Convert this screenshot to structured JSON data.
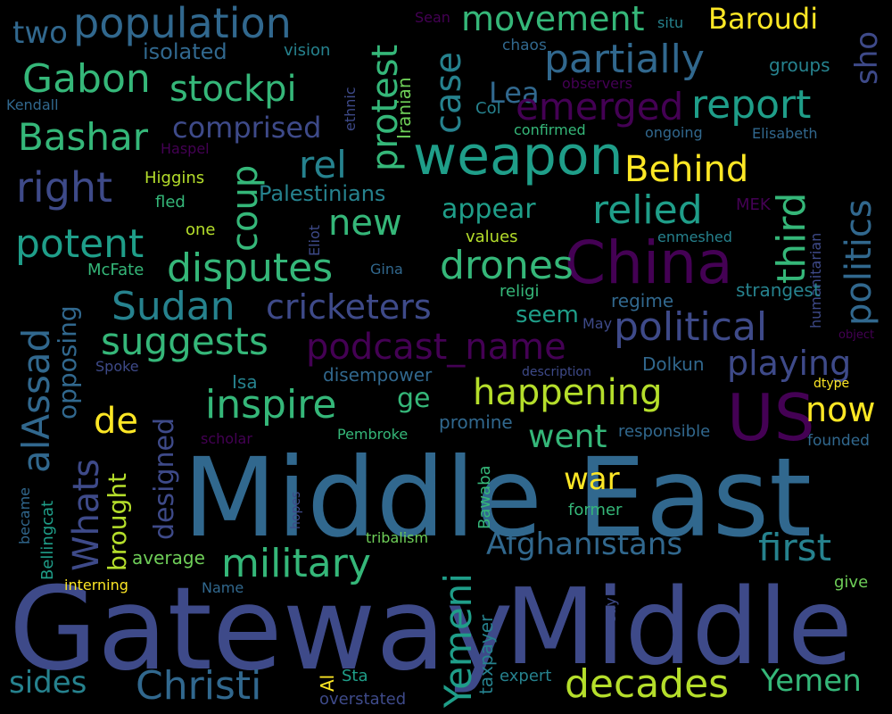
{
  "palette": {
    "background": "#000000",
    "dark_purple": "#440154",
    "indigo": "#3e4a89",
    "blue": "#31688e",
    "teal": "#26828e",
    "green_teal": "#1f9e89",
    "green": "#35b779",
    "light_green": "#6ece58",
    "lime": "#b5de2b",
    "yellow": "#fde725"
  },
  "words": [
    {
      "text": "Middle East",
      "color": "#31688e",
      "vertical": false
    },
    {
      "text": "Gateway",
      "color": "#3e4a89",
      "vertical": false
    },
    {
      "text": "Middle",
      "color": "#3e4a89",
      "vertical": false
    },
    {
      "text": "China",
      "color": "#440154",
      "vertical": false
    },
    {
      "text": "US",
      "color": "#440154",
      "vertical": false
    },
    {
      "text": "weapon",
      "color": "#1f9e89",
      "vertical": false
    },
    {
      "text": "population",
      "color": "#31688e",
      "vertical": false
    },
    {
      "text": "two",
      "color": "#31688e",
      "vertical": false
    },
    {
      "text": "movement",
      "color": "#35b779",
      "vertical": false
    },
    {
      "text": "Baroudi",
      "color": "#fde725",
      "vertical": false
    },
    {
      "text": "Sean",
      "color": "#440154",
      "vertical": false
    },
    {
      "text": "situ",
      "color": "#26828e",
      "vertical": false
    },
    {
      "text": "sho",
      "color": "#3e4a89",
      "vertical": true
    },
    {
      "text": "Gabon",
      "color": "#35b779",
      "vertical": false
    },
    {
      "text": "isolated",
      "color": "#31688e",
      "vertical": false
    },
    {
      "text": "vision",
      "color": "#26828e",
      "vertical": false
    },
    {
      "text": "partially",
      "color": "#31688e",
      "vertical": false
    },
    {
      "text": "chaos",
      "color": "#31688e",
      "vertical": false
    },
    {
      "text": "groups",
      "color": "#26828e",
      "vertical": false
    },
    {
      "text": "stockpi",
      "color": "#35b779",
      "vertical": false
    },
    {
      "text": "case",
      "color": "#26828e",
      "vertical": true
    },
    {
      "text": "Lea",
      "color": "#31688e",
      "vertical": false
    },
    {
      "text": "observers",
      "color": "#440154",
      "vertical": false
    },
    {
      "text": "Kendall",
      "color": "#31688e",
      "vertical": false
    },
    {
      "text": "ethnic",
      "color": "#3e4a89",
      "vertical": true
    },
    {
      "text": "Iranian",
      "color": "#6ece58",
      "vertical": true
    },
    {
      "text": "emerged",
      "color": "#440154",
      "vertical": false
    },
    {
      "text": "report",
      "color": "#1f9e89",
      "vertical": false
    },
    {
      "text": "Col",
      "color": "#26828e",
      "vertical": false
    },
    {
      "text": "comprised",
      "color": "#3e4a89",
      "vertical": false
    },
    {
      "text": "confirmed",
      "color": "#35b779",
      "vertical": false
    },
    {
      "text": "ongoing",
      "color": "#31688e",
      "vertical": false
    },
    {
      "text": "Elisabeth",
      "color": "#31688e",
      "vertical": false
    },
    {
      "text": "Bashar",
      "color": "#35b779",
      "vertical": false
    },
    {
      "text": "Haspel",
      "color": "#440154",
      "vertical": false
    },
    {
      "text": "protest",
      "color": "#35b779",
      "vertical": true
    },
    {
      "text": "rel",
      "color": "#26828e",
      "vertical": false
    },
    {
      "text": "Behind",
      "color": "#fde725",
      "vertical": false
    },
    {
      "text": "politics",
      "color": "#31688e",
      "vertical": true
    },
    {
      "text": "right",
      "color": "#3e4a89",
      "vertical": false
    },
    {
      "text": "Higgins",
      "color": "#b5de2b",
      "vertical": false
    },
    {
      "text": "coup",
      "color": "#35b779",
      "vertical": true
    },
    {
      "text": "Palestinians",
      "color": "#26828e",
      "vertical": false
    },
    {
      "text": "third",
      "color": "#35b779",
      "vertical": true
    },
    {
      "text": "humanitarian",
      "color": "#3e4a89",
      "vertical": true
    },
    {
      "text": "fled",
      "color": "#35b779",
      "vertical": false
    },
    {
      "text": "new",
      "color": "#35b779",
      "vertical": false
    },
    {
      "text": "appear",
      "color": "#1f9e89",
      "vertical": false
    },
    {
      "text": "relied",
      "color": "#1f9e89",
      "vertical": false
    },
    {
      "text": "MEK",
      "color": "#440154",
      "vertical": false
    },
    {
      "text": "one",
      "color": "#b5de2b",
      "vertical": false
    },
    {
      "text": "Eliot",
      "color": "#3e4a89",
      "vertical": true
    },
    {
      "text": "values",
      "color": "#b5de2b",
      "vertical": false
    },
    {
      "text": "enmeshed",
      "color": "#26828e",
      "vertical": false
    },
    {
      "text": "potent",
      "color": "#1f9e89",
      "vertical": false
    },
    {
      "text": "disputes",
      "color": "#35b779",
      "vertical": false
    },
    {
      "text": "drones",
      "color": "#35b779",
      "vertical": false
    },
    {
      "text": "McFate",
      "color": "#35b779",
      "vertical": false
    },
    {
      "text": "Gina",
      "color": "#31688e",
      "vertical": false
    },
    {
      "text": "religi",
      "color": "#35b779",
      "vertical": false
    },
    {
      "text": "strangest",
      "color": "#26828e",
      "vertical": false
    },
    {
      "text": "alAssad",
      "color": "#31688e",
      "vertical": true
    },
    {
      "text": "opposing",
      "color": "#31688e",
      "vertical": true
    },
    {
      "text": "Sudan",
      "color": "#26828e",
      "vertical": false
    },
    {
      "text": "cricketers",
      "color": "#3e4a89",
      "vertical": false
    },
    {
      "text": "regime",
      "color": "#31688e",
      "vertical": false
    },
    {
      "text": "seem",
      "color": "#1f9e89",
      "vertical": false
    },
    {
      "text": "May",
      "color": "#3e4a89",
      "vertical": false
    },
    {
      "text": "political",
      "color": "#3e4a89",
      "vertical": false
    },
    {
      "text": "object",
      "color": "#440154",
      "vertical": false
    },
    {
      "text": "suggests",
      "color": "#35b779",
      "vertical": false
    },
    {
      "text": "podcast_name",
      "color": "#440154",
      "vertical": false
    },
    {
      "text": "playing",
      "color": "#3e4a89",
      "vertical": false
    },
    {
      "text": "Spoke",
      "color": "#3e4a89",
      "vertical": false
    },
    {
      "text": "disempower",
      "color": "#31688e",
      "vertical": false
    },
    {
      "text": "description",
      "color": "#3e4a89",
      "vertical": false
    },
    {
      "text": "Dolkun",
      "color": "#31688e",
      "vertical": false
    },
    {
      "text": "Isa",
      "color": "#26828e",
      "vertical": false
    },
    {
      "text": "dtype",
      "color": "#fde725",
      "vertical": false
    },
    {
      "text": "Whats",
      "color": "#3e4a89",
      "vertical": true
    },
    {
      "text": "inspire",
      "color": "#35b779",
      "vertical": false
    },
    {
      "text": "ge",
      "color": "#35b779",
      "vertical": false
    },
    {
      "text": "happening",
      "color": "#b5de2b",
      "vertical": false
    },
    {
      "text": "now",
      "color": "#fde725",
      "vertical": false
    },
    {
      "text": "de",
      "color": "#fde725",
      "vertical": false
    },
    {
      "text": "promine",
      "color": "#31688e",
      "vertical": false
    },
    {
      "text": "responsible",
      "color": "#31688e",
      "vertical": false
    },
    {
      "text": "brought",
      "color": "#b5de2b",
      "vertical": true
    },
    {
      "text": "designed",
      "color": "#3e4a89",
      "vertical": true
    },
    {
      "text": "scholar",
      "color": "#440154",
      "vertical": false
    },
    {
      "text": "Pembroke",
      "color": "#35b779",
      "vertical": false
    },
    {
      "text": "went",
      "color": "#35b779",
      "vertical": false
    },
    {
      "text": "founded",
      "color": "#31688e",
      "vertical": false
    },
    {
      "text": "became",
      "color": "#31688e",
      "vertical": true
    },
    {
      "text": "hopes",
      "color": "#3e4a89",
      "vertical": true
    },
    {
      "text": "Bawaba",
      "color": "#35b779",
      "vertical": true
    },
    {
      "text": "war",
      "color": "#fde725",
      "vertical": false
    },
    {
      "text": "Bellingcat",
      "color": "#1f9e89",
      "vertical": true
    },
    {
      "text": "former",
      "color": "#35b779",
      "vertical": false
    },
    {
      "text": "Afghanistans",
      "color": "#31688e",
      "vertical": false
    },
    {
      "text": "first",
      "color": "#26828e",
      "vertical": false
    },
    {
      "text": "tribalism",
      "color": "#6ece58",
      "vertical": false
    },
    {
      "text": "average",
      "color": "#6ece58",
      "vertical": false
    },
    {
      "text": "military",
      "color": "#35b779",
      "vertical": false
    },
    {
      "text": "interning",
      "color": "#fde725",
      "vertical": false
    },
    {
      "text": "Name",
      "color": "#31688e",
      "vertical": false
    },
    {
      "text": "give",
      "color": "#6ece58",
      "vertical": false
    },
    {
      "text": "say",
      "color": "#3e4a89",
      "vertical": true
    },
    {
      "text": "Yemeni",
      "color": "#1f9e89",
      "vertical": true
    },
    {
      "text": "taxpayer",
      "color": "#26828e",
      "vertical": true
    },
    {
      "text": "Al",
      "color": "#fde725",
      "vertical": true
    },
    {
      "text": "Sta",
      "color": "#1f9e89",
      "vertical": false
    },
    {
      "text": "expert",
      "color": "#26828e",
      "vertical": false
    },
    {
      "text": "sides",
      "color": "#26828e",
      "vertical": false
    },
    {
      "text": "Christi",
      "color": "#31688e",
      "vertical": false
    },
    {
      "text": "decades",
      "color": "#b5de2b",
      "vertical": false
    },
    {
      "text": "Yemen",
      "color": "#35b779",
      "vertical": false
    },
    {
      "text": "overstated",
      "color": "#3e4a89",
      "vertical": false
    }
  ]
}
